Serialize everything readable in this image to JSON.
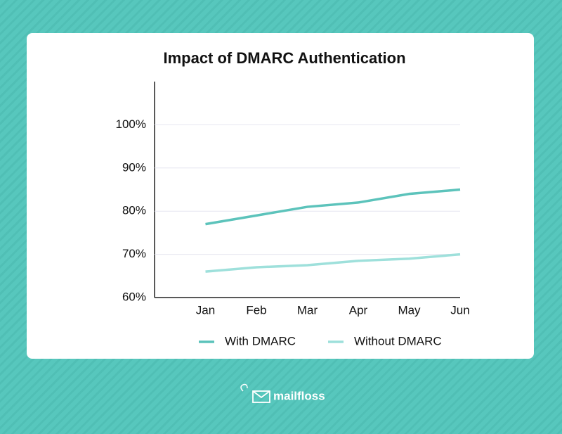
{
  "chart_data": {
    "type": "line",
    "title": "Impact of DMARC Authentication",
    "categories": [
      "Jan",
      "Feb",
      "Mar",
      "Apr",
      "May",
      "Jun"
    ],
    "series": [
      {
        "name": "With DMARC",
        "color": "#5cc3bb",
        "values": [
          77,
          79,
          81,
          82,
          84,
          85
        ]
      },
      {
        "name": "Without DMARC",
        "color": "#9ee0db",
        "values": [
          66,
          67,
          67.5,
          68.5,
          69,
          70
        ]
      }
    ],
    "ylim": [
      60,
      110
    ],
    "yticks": [
      {
        "value": 60,
        "label": "60%"
      },
      {
        "value": 70,
        "label": "70%"
      },
      {
        "value": 80,
        "label": "80%"
      },
      {
        "value": 90,
        "label": "90%"
      },
      {
        "value": 100,
        "label": "100%"
      }
    ],
    "grid": true,
    "legend": "bottom"
  },
  "brand": "mailfloss"
}
